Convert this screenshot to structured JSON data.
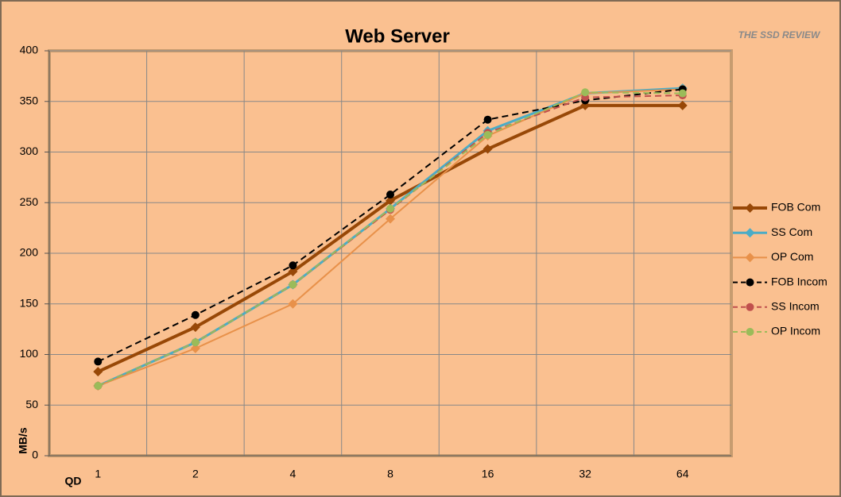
{
  "chart_data": {
    "type": "line",
    "title": "Web Server",
    "logo": "THE SSD REVIEW",
    "x_label": "QD",
    "y_label": "MB/s",
    "categories": [
      "1",
      "2",
      "4",
      "8",
      "16",
      "32",
      "64"
    ],
    "ylim": [
      0,
      400
    ],
    "yticks": [
      0,
      50,
      100,
      150,
      200,
      250,
      300,
      350,
      400
    ],
    "grid": true,
    "legend": "right",
    "series": [
      {
        "name": "FOB Com",
        "color": "#984807",
        "width": 4,
        "dash": false,
        "marker": "diamond",
        "values": [
          83,
          127,
          182,
          252,
          303,
          346,
          346
        ]
      },
      {
        "name": "SS Com",
        "color": "#4BACC6",
        "width": 3,
        "dash": false,
        "marker": "diamond",
        "values": [
          69,
          112,
          169,
          244,
          321,
          358,
          363
        ]
      },
      {
        "name": "OP Com",
        "color": "#E8914A",
        "width": 2,
        "dash": false,
        "marker": "diamond",
        "values": [
          69,
          106,
          150,
          234,
          316,
          358,
          362
        ]
      },
      {
        "name": "FOB Incom",
        "color": "#000000",
        "width": 2,
        "dash": true,
        "marker": "circle",
        "values": [
          93,
          139,
          188,
          258,
          332,
          351,
          362
        ]
      },
      {
        "name": "SS Incom",
        "color": "#C0504D",
        "width": 2,
        "dash": true,
        "marker": "circle",
        "values": [
          69,
          112,
          169,
          243,
          319,
          354,
          356
        ]
      },
      {
        "name": "OP Incom",
        "color": "#9BBB59",
        "width": 2,
        "dash": true,
        "marker": "circle",
        "values": [
          69,
          112,
          169,
          244,
          317,
          359,
          358
        ]
      }
    ]
  }
}
